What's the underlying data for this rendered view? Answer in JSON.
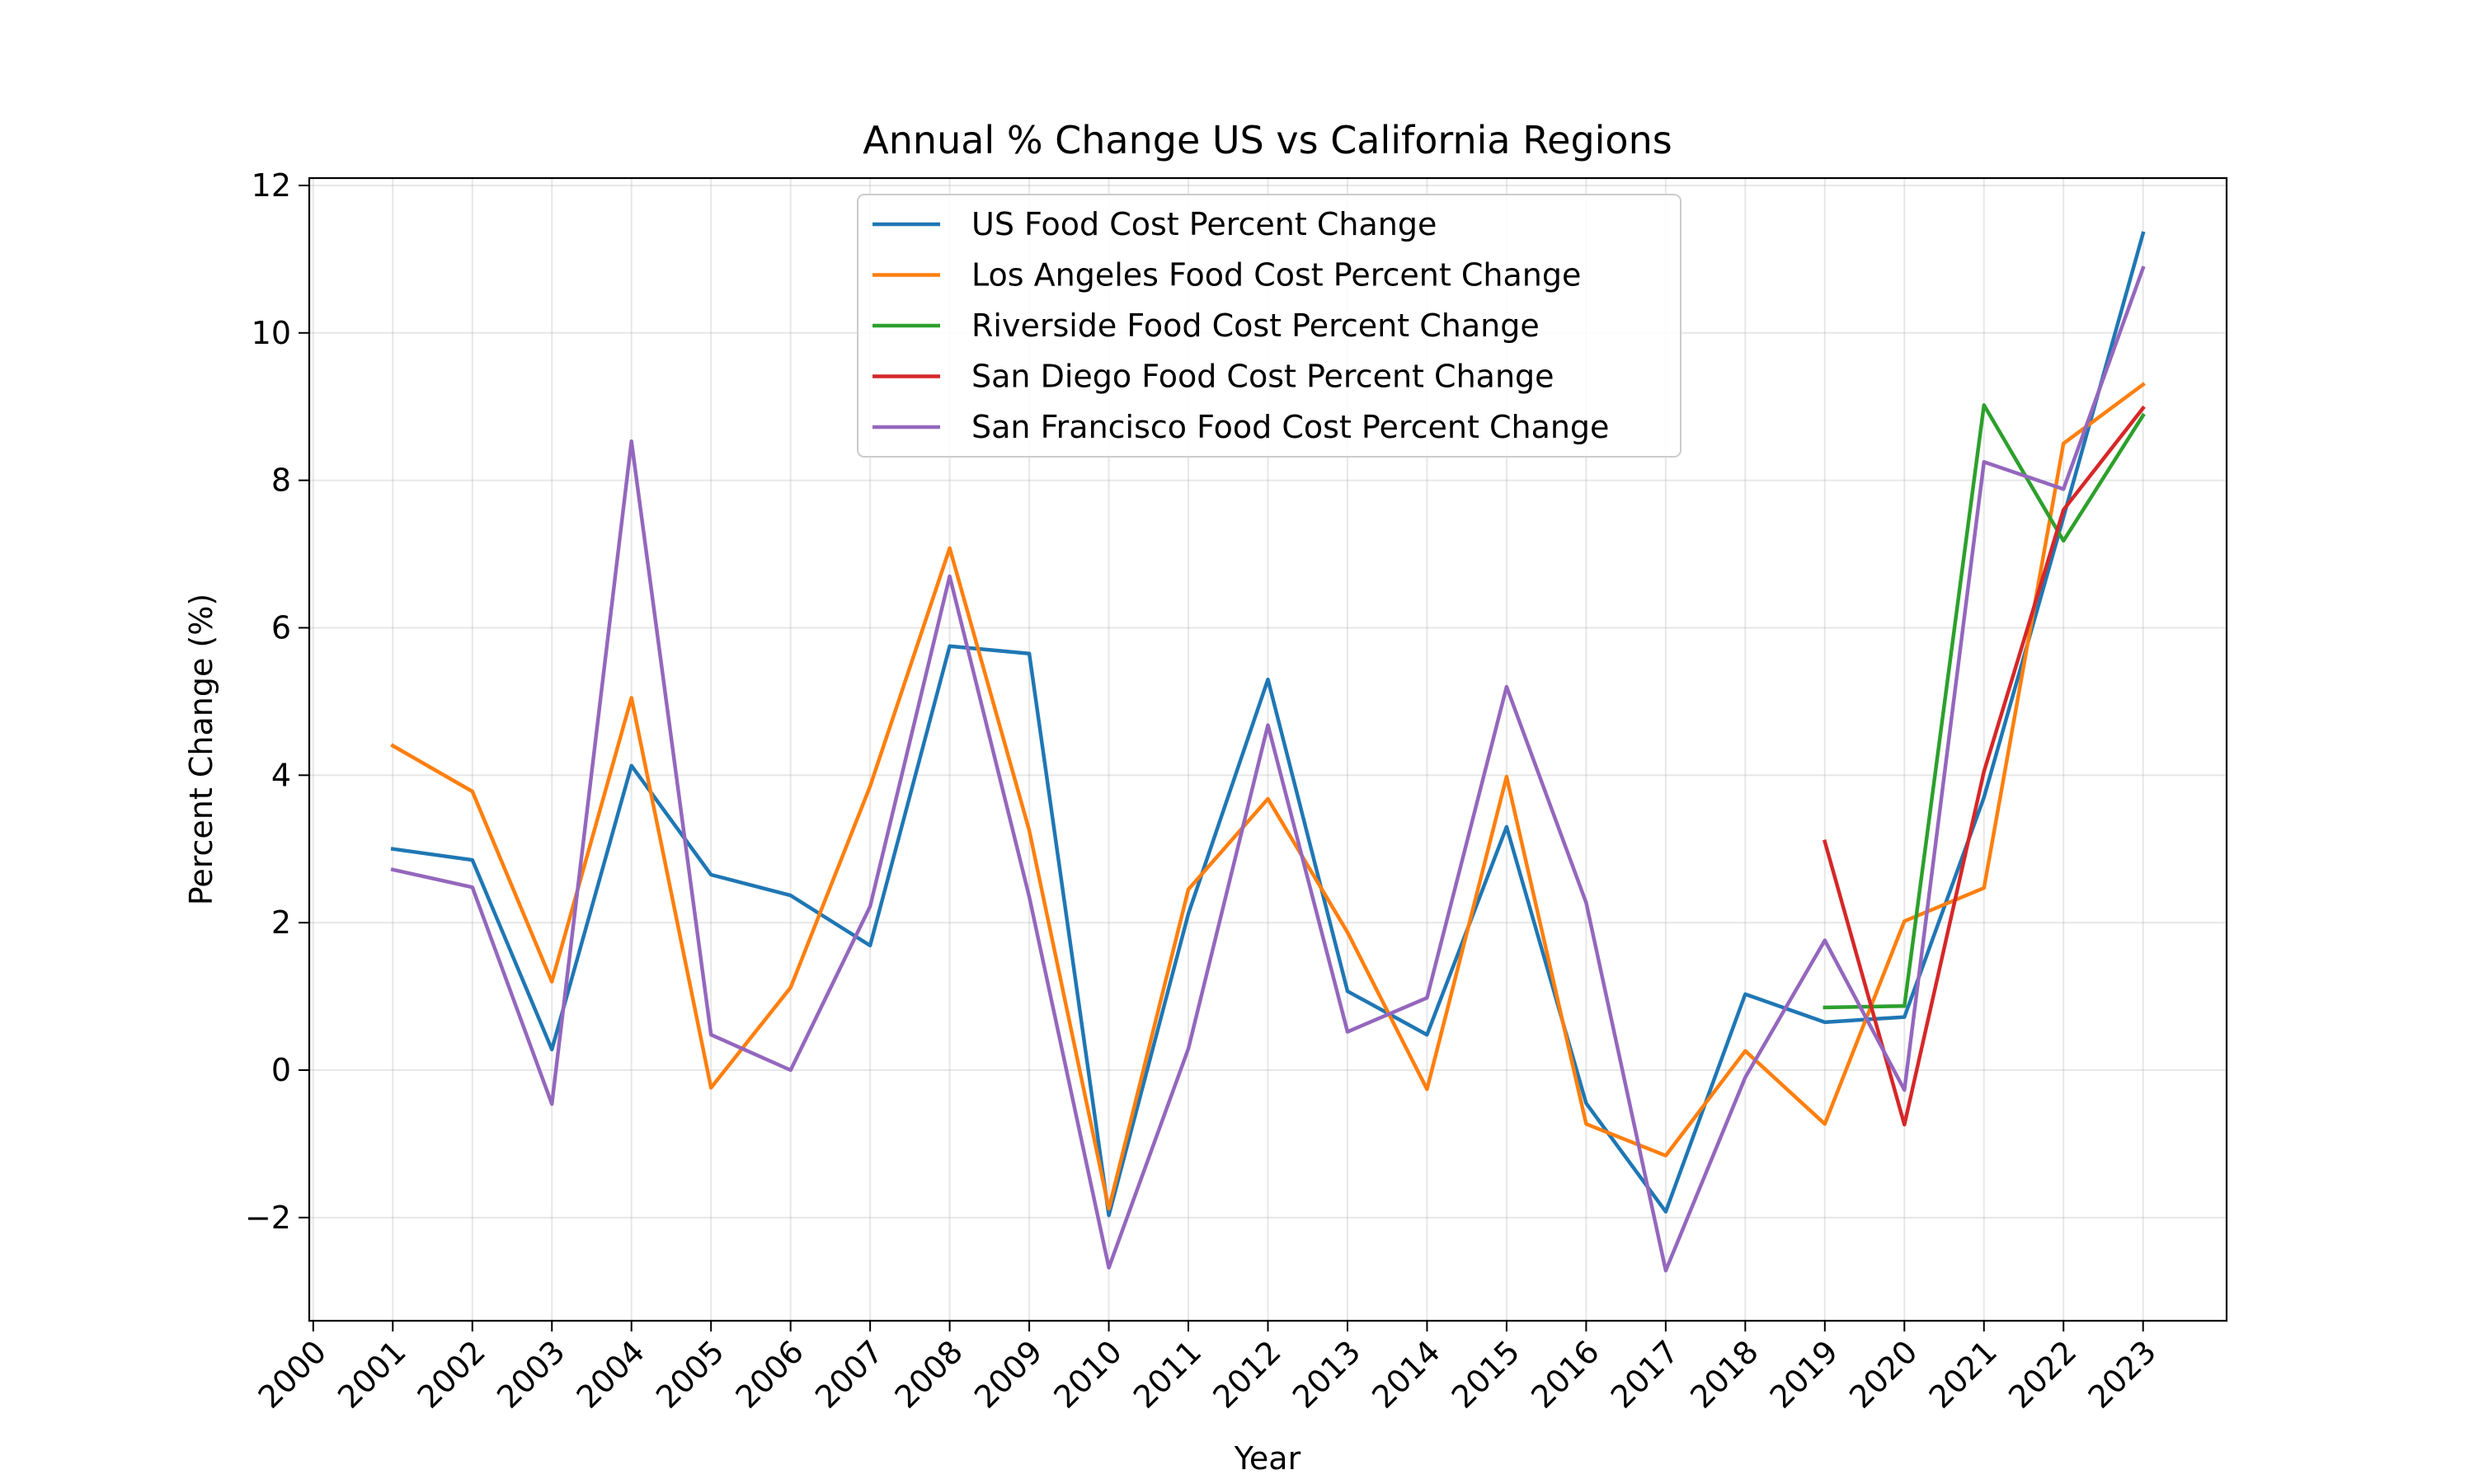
{
  "chart_data": {
    "type": "line",
    "title": "Annual % Change US vs California Regions",
    "xlabel": "Year",
    "ylabel": "Percent Change (%)",
    "xlim": [
      1999.95,
      2024.05
    ],
    "ylim": [
      -3.4,
      12.1
    ],
    "x_ticks": [
      2000,
      2001,
      2002,
      2003,
      2004,
      2005,
      2006,
      2007,
      2008,
      2009,
      2010,
      2011,
      2012,
      2013,
      2014,
      2015,
      2016,
      2017,
      2018,
      2019,
      2020,
      2021,
      2022,
      2023
    ],
    "y_ticks": [
      -2,
      0,
      2,
      4,
      6,
      8,
      10,
      12
    ],
    "y_tick_labels": [
      "−2",
      "0",
      "2",
      "4",
      "6",
      "8",
      "10",
      "12"
    ],
    "grid": true,
    "legend_position": "top-center",
    "series": [
      {
        "name": "US Food Cost Percent Change",
        "color": "#1f77b4",
        "x": [
          2001,
          2002,
          2003,
          2004,
          2005,
          2006,
          2007,
          2008,
          2009,
          2010,
          2011,
          2012,
          2013,
          2014,
          2015,
          2016,
          2017,
          2018,
          2019,
          2020,
          2021,
          2022,
          2023
        ],
        "values": [
          3.0,
          2.85,
          0.28,
          4.13,
          2.65,
          2.37,
          1.69,
          5.75,
          5.65,
          -1.97,
          2.12,
          5.3,
          1.07,
          0.48,
          3.3,
          -0.45,
          -1.92,
          1.03,
          0.65,
          0.72,
          3.7,
          7.5,
          11.35
        ]
      },
      {
        "name": "Los Angeles Food Cost Percent Change",
        "color": "#ff7f0e",
        "x": [
          2001,
          2002,
          2003,
          2004,
          2005,
          2006,
          2007,
          2008,
          2009,
          2010,
          2011,
          2012,
          2013,
          2014,
          2015,
          2016,
          2017,
          2018,
          2019,
          2020,
          2021,
          2022,
          2023
        ],
        "values": [
          4.4,
          3.78,
          1.2,
          5.05,
          -0.24,
          1.12,
          3.85,
          7.08,
          3.25,
          -1.88,
          2.45,
          3.68,
          1.87,
          -0.26,
          3.98,
          -0.73,
          -1.16,
          0.26,
          -0.73,
          2.02,
          2.47,
          8.5,
          9.3
        ]
      },
      {
        "name": "Riverside Food Cost Percent Change",
        "color": "#2ca02c",
        "x": [
          2019,
          2020,
          2021,
          2022,
          2023
        ],
        "values": [
          0.85,
          0.87,
          9.02,
          7.18,
          8.88
        ]
      },
      {
        "name": "San Diego Food Cost Percent Change",
        "color": "#d62728",
        "x": [
          2019,
          2020,
          2021,
          2022,
          2023
        ],
        "values": [
          3.1,
          -0.74,
          4.05,
          7.6,
          8.98
        ]
      },
      {
        "name": "San Francisco Food Cost Percent Change",
        "color": "#9467bd",
        "x": [
          2001,
          2002,
          2003,
          2004,
          2005,
          2006,
          2007,
          2008,
          2009,
          2010,
          2011,
          2012,
          2013,
          2014,
          2015,
          2016,
          2017,
          2018,
          2019,
          2020,
          2021,
          2022,
          2023
        ],
        "values": [
          2.72,
          2.48,
          -0.46,
          8.53,
          0.48,
          0.0,
          2.22,
          6.7,
          2.35,
          -2.68,
          0.29,
          4.68,
          0.52,
          0.98,
          5.2,
          2.27,
          -2.72,
          -0.1,
          1.76,
          -0.27,
          8.25,
          7.88,
          10.88
        ]
      }
    ]
  }
}
